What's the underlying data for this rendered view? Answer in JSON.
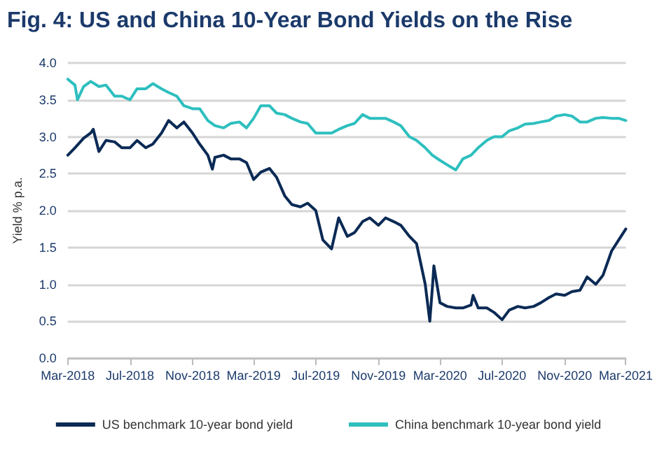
{
  "chart_data": {
    "type": "line",
    "title": "Fig. 4: US and China 10-Year Bond Yields on the Rise",
    "ylabel": "Yield % p.a.",
    "xlim": [
      "2018-03-01",
      "2021-03-01"
    ],
    "xticks": [
      {
        "value": "2018-03-01",
        "label": "Mar-2018"
      },
      {
        "value": "2018-07-01",
        "label": "Jul-2018"
      },
      {
        "value": "2018-11-01",
        "label": "Nov-2018"
      },
      {
        "value": "2019-03-01",
        "label": "Mar-2019"
      },
      {
        "value": "2019-07-01",
        "label": "Jul-2019"
      },
      {
        "value": "2019-11-01",
        "label": "Nov-2019"
      },
      {
        "value": "2020-03-01",
        "label": "Mar-2020"
      },
      {
        "value": "2020-07-01",
        "label": "Jul-2020"
      },
      {
        "value": "2020-11-01",
        "label": "Nov-2020"
      },
      {
        "value": "2021-03-01",
        "label": "Mar-2021"
      }
    ],
    "ylim": [
      0,
      4
    ],
    "yticks": [
      {
        "value": 0,
        "label": "0.0"
      },
      {
        "value": 0.5,
        "label": "0.5"
      },
      {
        "value": 1,
        "label": "1.0"
      },
      {
        "value": 1.5,
        "label": "1.5"
      },
      {
        "value": 2,
        "label": "2.0"
      },
      {
        "value": 2.5,
        "label": "2.5"
      },
      {
        "value": 3,
        "label": "3.0"
      },
      {
        "value": 3.5,
        "label": "3.5"
      },
      {
        "value": 4,
        "label": "4.0"
      }
    ],
    "grid": "y",
    "legend": "bottom",
    "marker": "none",
    "line_style": "solid",
    "series": [
      {
        "name": "US benchmark 10-year bond yield",
        "color": "#0b2a55",
        "x": [
          "2018-03-01",
          "2018-03-15",
          "2018-04-01",
          "2018-04-15",
          "2018-04-20",
          "2018-05-01",
          "2018-05-15",
          "2018-06-01",
          "2018-06-15",
          "2018-07-01",
          "2018-07-15",
          "2018-08-01",
          "2018-08-15",
          "2018-09-01",
          "2018-09-15",
          "2018-10-01",
          "2018-10-15",
          "2018-11-01",
          "2018-11-15",
          "2018-12-01",
          "2018-12-10",
          "2018-12-15",
          "2019-01-01",
          "2019-01-15",
          "2019-02-01",
          "2019-02-15",
          "2019-03-01",
          "2019-03-15",
          "2019-04-01",
          "2019-04-15",
          "2019-05-01",
          "2019-05-15",
          "2019-06-01",
          "2019-06-15",
          "2019-07-01",
          "2019-07-15",
          "2019-08-01",
          "2019-08-15",
          "2019-09-01",
          "2019-09-15",
          "2019-10-01",
          "2019-10-15",
          "2019-11-01",
          "2019-11-15",
          "2019-12-01",
          "2019-12-15",
          "2020-01-01",
          "2020-01-15",
          "2020-02-01",
          "2020-02-10",
          "2020-02-15",
          "2020-02-18",
          "2020-03-01",
          "2020-03-15",
          "2020-04-01",
          "2020-04-15",
          "2020-05-01",
          "2020-05-05",
          "2020-05-15",
          "2020-06-01",
          "2020-06-15",
          "2020-07-01",
          "2020-07-15",
          "2020-08-01",
          "2020-08-15",
          "2020-09-01",
          "2020-09-15",
          "2020-10-01",
          "2020-10-15",
          "2020-11-01",
          "2020-11-15",
          "2020-12-01",
          "2020-12-15",
          "2021-01-01",
          "2021-01-15",
          "2021-02-01",
          "2021-02-15",
          "2021-03-01"
        ],
        "values": [
          2.75,
          2.85,
          2.98,
          3.05,
          3.1,
          2.8,
          2.95,
          2.93,
          2.85,
          2.85,
          2.95,
          2.85,
          2.9,
          3.05,
          3.22,
          3.12,
          3.2,
          3.05,
          2.9,
          2.75,
          2.56,
          2.72,
          2.75,
          2.7,
          2.7,
          2.65,
          2.42,
          2.52,
          2.57,
          2.45,
          2.2,
          2.08,
          2.05,
          2.1,
          2.0,
          1.6,
          1.48,
          1.9,
          1.65,
          1.7,
          1.85,
          1.9,
          1.8,
          1.9,
          1.85,
          1.8,
          1.65,
          1.55,
          1.0,
          0.5,
          0.95,
          1.25,
          0.75,
          0.7,
          0.68,
          0.68,
          0.72,
          0.85,
          0.68,
          0.68,
          0.62,
          0.52,
          0.65,
          0.7,
          0.68,
          0.7,
          0.75,
          0.82,
          0.87,
          0.85,
          0.9,
          0.92,
          1.1,
          1.0,
          1.12,
          1.45,
          1.6,
          1.75
        ]
      },
      {
        "name": "China benchmark 10-year bond yield",
        "color": "#2ebfbf",
        "x": [
          "2018-03-01",
          "2018-03-15",
          "2018-03-20",
          "2018-04-01",
          "2018-04-15",
          "2018-05-01",
          "2018-05-15",
          "2018-06-01",
          "2018-06-15",
          "2018-07-01",
          "2018-07-15",
          "2018-08-01",
          "2018-08-15",
          "2018-09-01",
          "2018-09-15",
          "2018-10-01",
          "2018-10-15",
          "2018-11-01",
          "2018-11-15",
          "2018-12-01",
          "2018-12-15",
          "2019-01-01",
          "2019-01-15",
          "2019-02-01",
          "2019-02-15",
          "2019-03-01",
          "2019-03-15",
          "2019-04-01",
          "2019-04-15",
          "2019-05-01",
          "2019-05-15",
          "2019-06-01",
          "2019-06-15",
          "2019-07-01",
          "2019-07-15",
          "2019-08-01",
          "2019-08-15",
          "2019-09-01",
          "2019-09-15",
          "2019-10-01",
          "2019-10-15",
          "2019-11-01",
          "2019-11-15",
          "2019-12-01",
          "2019-12-15",
          "2020-01-01",
          "2020-01-15",
          "2020-02-01",
          "2020-02-15",
          "2020-03-01",
          "2020-03-15",
          "2020-04-01",
          "2020-04-15",
          "2020-05-01",
          "2020-05-15",
          "2020-06-01",
          "2020-06-15",
          "2020-07-01",
          "2020-07-15",
          "2020-08-01",
          "2020-08-15",
          "2020-09-01",
          "2020-09-15",
          "2020-10-01",
          "2020-10-15",
          "2020-11-01",
          "2020-11-15",
          "2020-12-01",
          "2020-12-15",
          "2021-01-01",
          "2021-01-15",
          "2021-02-01",
          "2021-02-15",
          "2021-03-01"
        ],
        "values": [
          3.78,
          3.7,
          3.5,
          3.68,
          3.75,
          3.68,
          3.7,
          3.55,
          3.55,
          3.5,
          3.65,
          3.65,
          3.72,
          3.65,
          3.6,
          3.55,
          3.42,
          3.38,
          3.38,
          3.22,
          3.15,
          3.12,
          3.18,
          3.2,
          3.12,
          3.25,
          3.42,
          3.42,
          3.32,
          3.3,
          3.25,
          3.2,
          3.18,
          3.05,
          3.05,
          3.05,
          3.1,
          3.15,
          3.18,
          3.3,
          3.25,
          3.25,
          3.25,
          3.2,
          3.15,
          3.0,
          2.95,
          2.85,
          2.75,
          2.68,
          2.62,
          2.55,
          2.7,
          2.75,
          2.85,
          2.95,
          3.0,
          3.0,
          3.08,
          3.12,
          3.17,
          3.18,
          3.2,
          3.22,
          3.28,
          3.3,
          3.28,
          3.2,
          3.2,
          3.25,
          3.26,
          3.25,
          3.25,
          3.22
        ]
      }
    ]
  }
}
